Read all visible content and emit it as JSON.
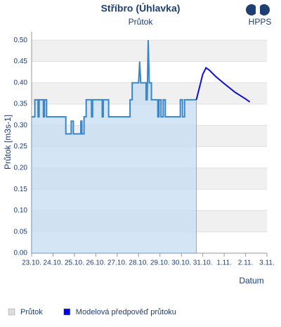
{
  "logo": "HPPS",
  "chart_data": {
    "type": "line",
    "title": "Stříbro (Úhlavka)",
    "subtitle": "Průtok",
    "y_label": "Průtok [m3s-1]",
    "x_label": "Datum",
    "xlim": [
      0,
      11
    ],
    "xticks": [
      {
        "value": 0,
        "label": "23.10."
      },
      {
        "value": 1,
        "label": "24.10."
      },
      {
        "value": 2,
        "label": "25.10."
      },
      {
        "value": 3,
        "label": "26.10."
      },
      {
        "value": 4,
        "label": "27.10."
      },
      {
        "value": 5,
        "label": "28.10."
      },
      {
        "value": 6,
        "label": "29.10."
      },
      {
        "value": 7,
        "label": "30.10."
      },
      {
        "value": 8,
        "label": "31.10."
      },
      {
        "value": 9,
        "label": "1.11."
      },
      {
        "value": 10,
        "label": "2.11."
      },
      {
        "value": 11,
        "label": "3.11."
      }
    ],
    "ylim": [
      0,
      0.52
    ],
    "yticks": [
      {
        "value": 0,
        "label": "0.00"
      },
      {
        "value": 0.05,
        "label": "0.05"
      },
      {
        "value": 0.1,
        "label": "0.10"
      },
      {
        "value": 0.15,
        "label": "0.15"
      },
      {
        "value": 0.2,
        "label": "0.20"
      },
      {
        "value": 0.25,
        "label": "0.25"
      },
      {
        "value": 0.3,
        "label": "0.30"
      },
      {
        "value": 0.35,
        "label": "0.35"
      },
      {
        "value": 0.4,
        "label": "0.40"
      },
      {
        "value": 0.45,
        "label": "0.45"
      },
      {
        "value": 0.5,
        "label": "0.50"
      }
    ],
    "grid": true,
    "series": [
      {
        "name": "Průtok",
        "color": "#3a86c8",
        "area_color": "#c5dcf2",
        "legend_color": "#dddddd",
        "x": [
          0,
          0.15,
          0.15,
          0.3,
          0.3,
          0.35,
          0.35,
          0.55,
          0.55,
          0.6,
          0.6,
          0.7,
          0.7,
          1.6,
          1.6,
          1.85,
          1.85,
          1.95,
          1.95,
          2.3,
          2.3,
          2.35,
          2.35,
          2.45,
          2.45,
          2.55,
          2.55,
          2.8,
          2.8,
          2.85,
          2.85,
          3.3,
          3.3,
          3.35,
          3.35,
          3.6,
          3.6,
          4.6,
          4.6,
          4.7,
          4.7,
          5.0,
          5.05,
          5.1,
          5.35,
          5.35,
          5.4,
          5.45,
          5.5,
          5.6,
          5.6,
          5.9,
          5.9,
          5.95,
          5.95,
          6.05,
          6.05,
          6.15,
          6.15,
          6.25,
          6.25,
          6.95,
          6.95,
          7.05,
          7.05,
          7.15,
          7.15,
          7.7
        ],
        "values": [
          0.32,
          0.32,
          0.36,
          0.36,
          0.32,
          0.32,
          0.36,
          0.36,
          0.32,
          0.32,
          0.36,
          0.36,
          0.32,
          0.32,
          0.28,
          0.28,
          0.31,
          0.31,
          0.28,
          0.28,
          0.31,
          0.31,
          0.28,
          0.28,
          0.32,
          0.32,
          0.36,
          0.36,
          0.32,
          0.32,
          0.36,
          0.36,
          0.32,
          0.32,
          0.36,
          0.36,
          0.32,
          0.32,
          0.36,
          0.36,
          0.4,
          0.4,
          0.45,
          0.4,
          0.4,
          0.36,
          0.36,
          0.5,
          0.4,
          0.4,
          0.36,
          0.36,
          0.32,
          0.32,
          0.36,
          0.36,
          0.32,
          0.32,
          0.36,
          0.36,
          0.32,
          0.32,
          0.36,
          0.36,
          0.32,
          0.32,
          0.36,
          0.36
        ]
      },
      {
        "name": "Modelová předpověď průtoku",
        "color": "#1010d0",
        "legend_color": "#0000ee",
        "x": [
          7.7,
          7.85,
          8.0,
          8.15,
          8.3,
          8.6,
          9.0,
          9.5,
          10.0,
          10.2
        ],
        "values": [
          0.36,
          0.39,
          0.42,
          0.435,
          0.43,
          0.415,
          0.398,
          0.378,
          0.362,
          0.355
        ]
      }
    ]
  }
}
